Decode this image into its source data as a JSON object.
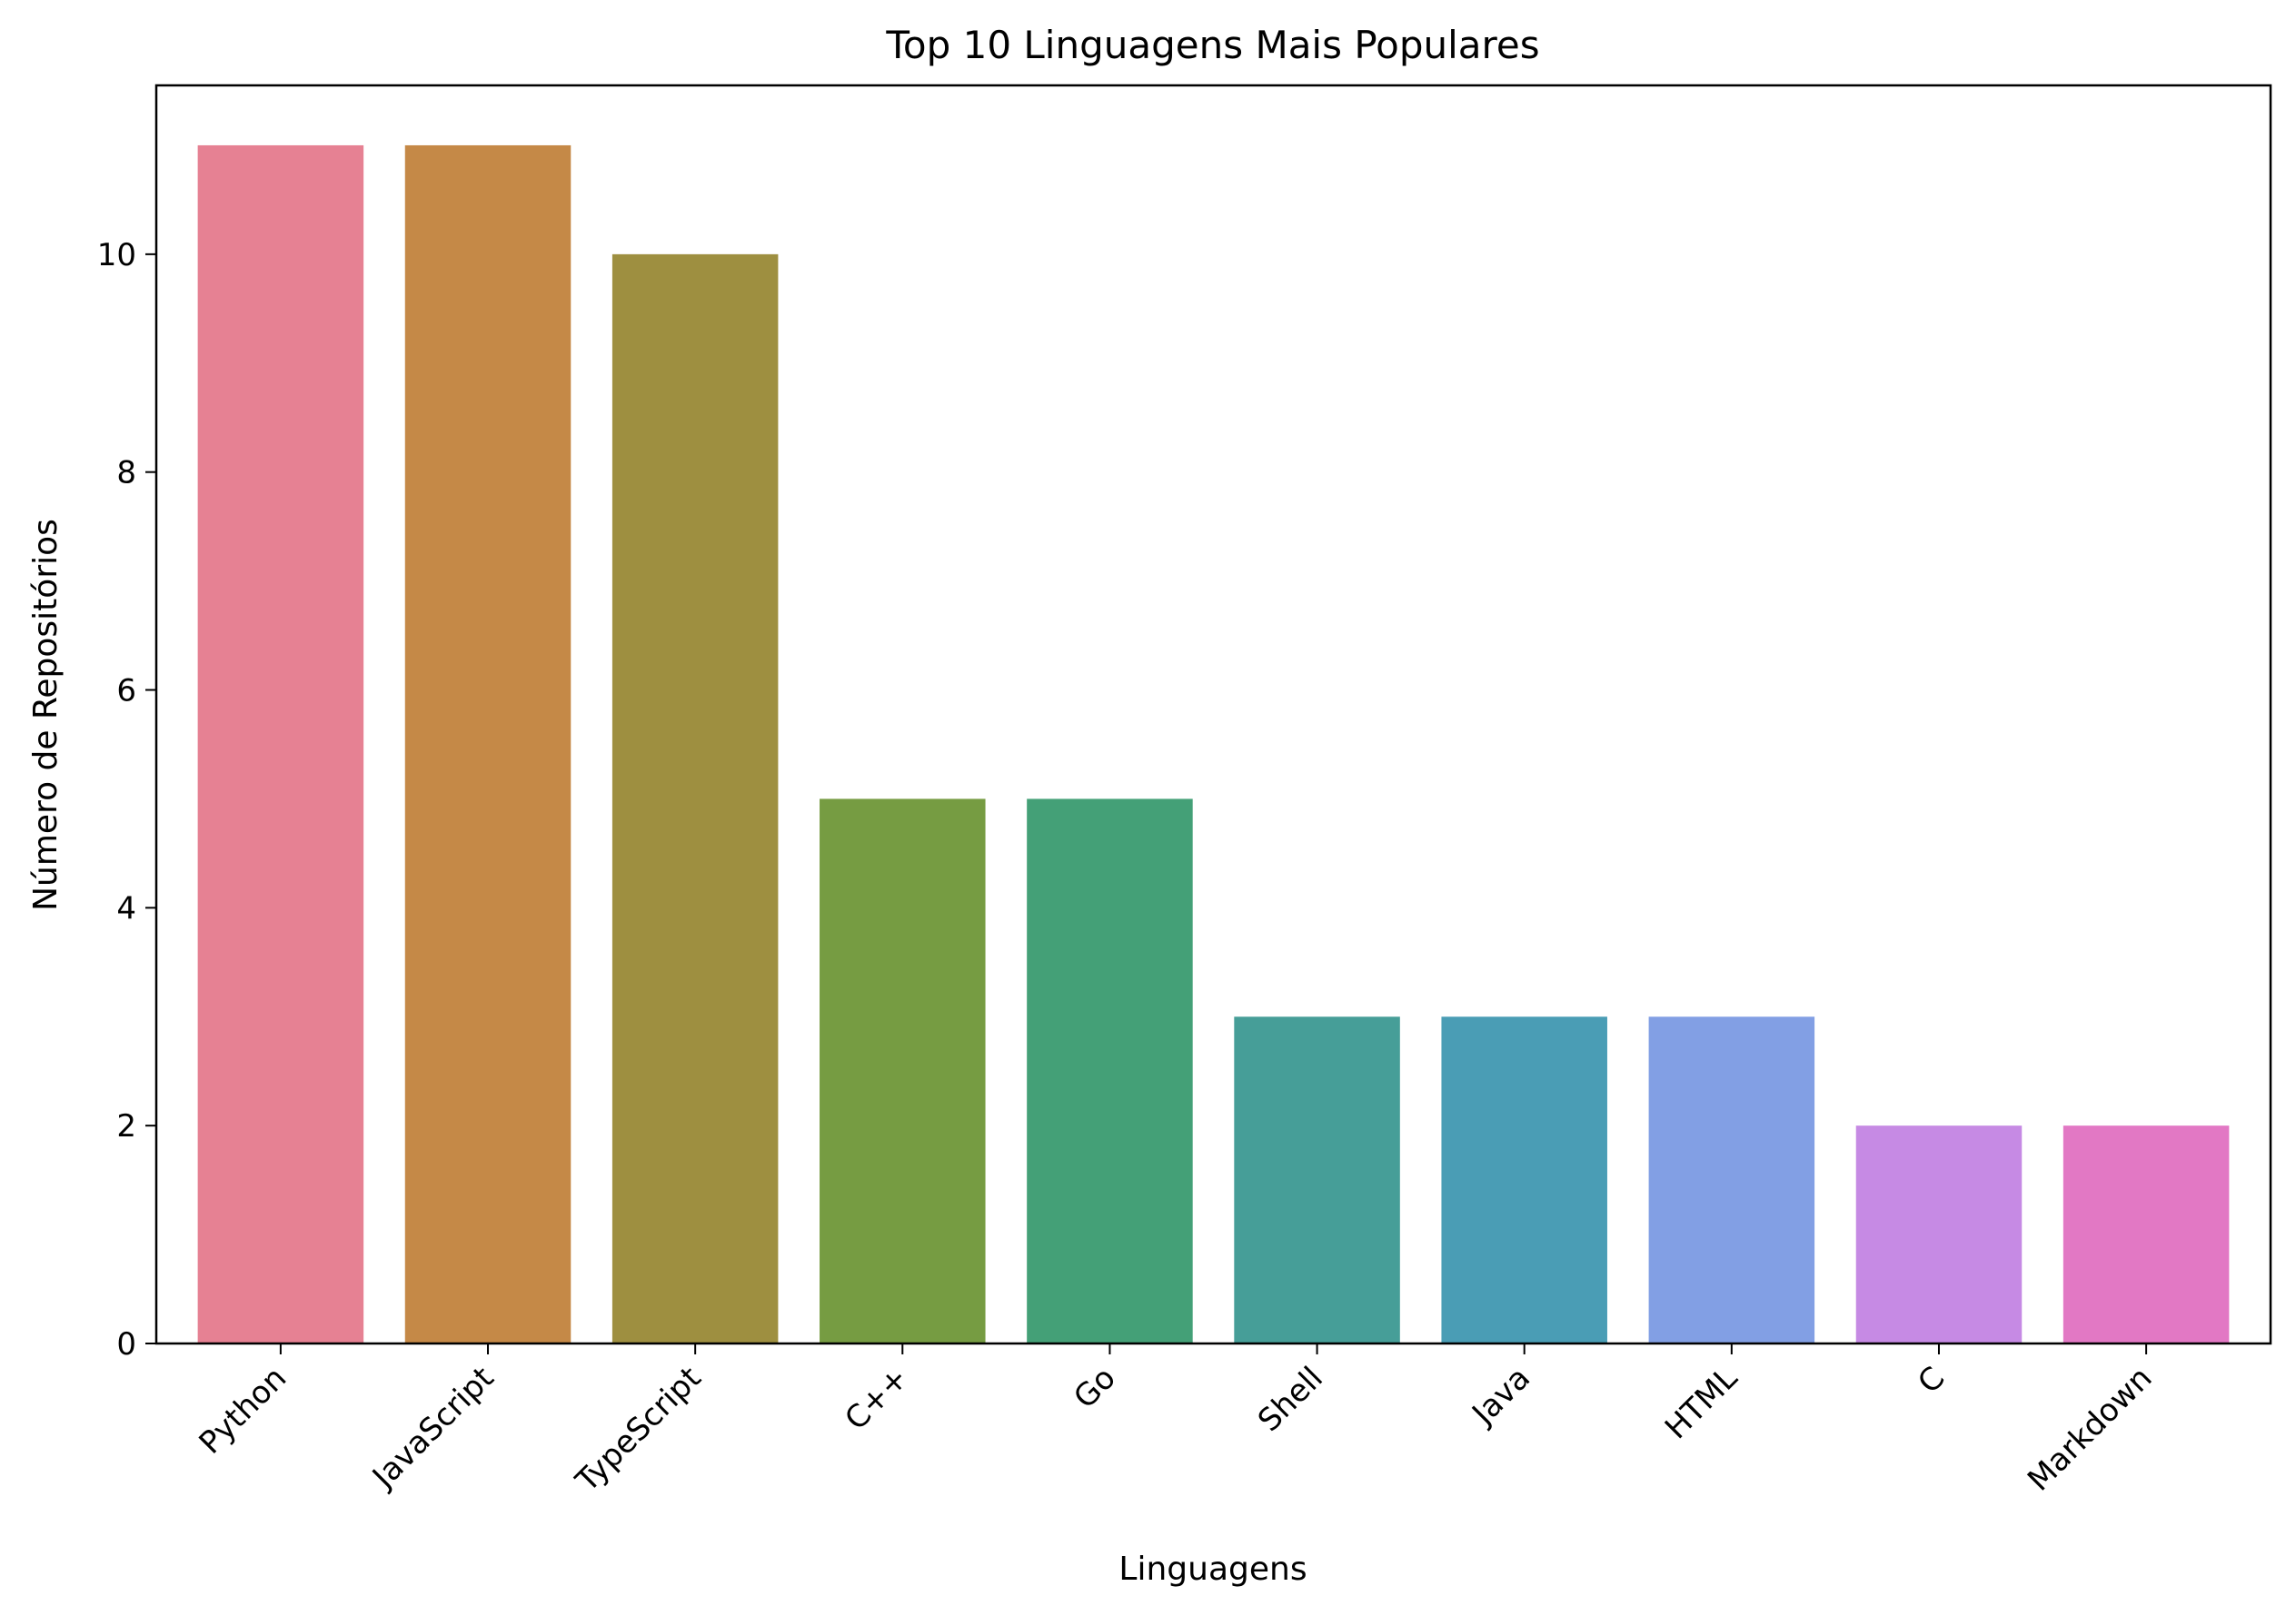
{
  "chart_data": {
    "type": "bar",
    "title": "Top 10 Linguagens Mais Populares",
    "xlabel": "Linguagens",
    "ylabel": "Número de Repositórios",
    "categories": [
      "Python",
      "JavaScript",
      "TypeScript",
      "C++",
      "Go",
      "Shell",
      "Java",
      "HTML",
      "C",
      "Markdown"
    ],
    "values": [
      11,
      11,
      10,
      5,
      5,
      3,
      3,
      3,
      2,
      2
    ],
    "colors": [
      "#e68193",
      "#c58947",
      "#9e8f40",
      "#769c42",
      "#44a077",
      "#469e98",
      "#4a9db5",
      "#829fe4",
      "#c68ae4",
      "#e278c4"
    ],
    "ylim": [
      0,
      11.55
    ],
    "yticks": [
      0,
      2,
      4,
      6,
      8,
      10
    ],
    "grid": false,
    "legend": "none",
    "xtick_rotation": 45
  }
}
